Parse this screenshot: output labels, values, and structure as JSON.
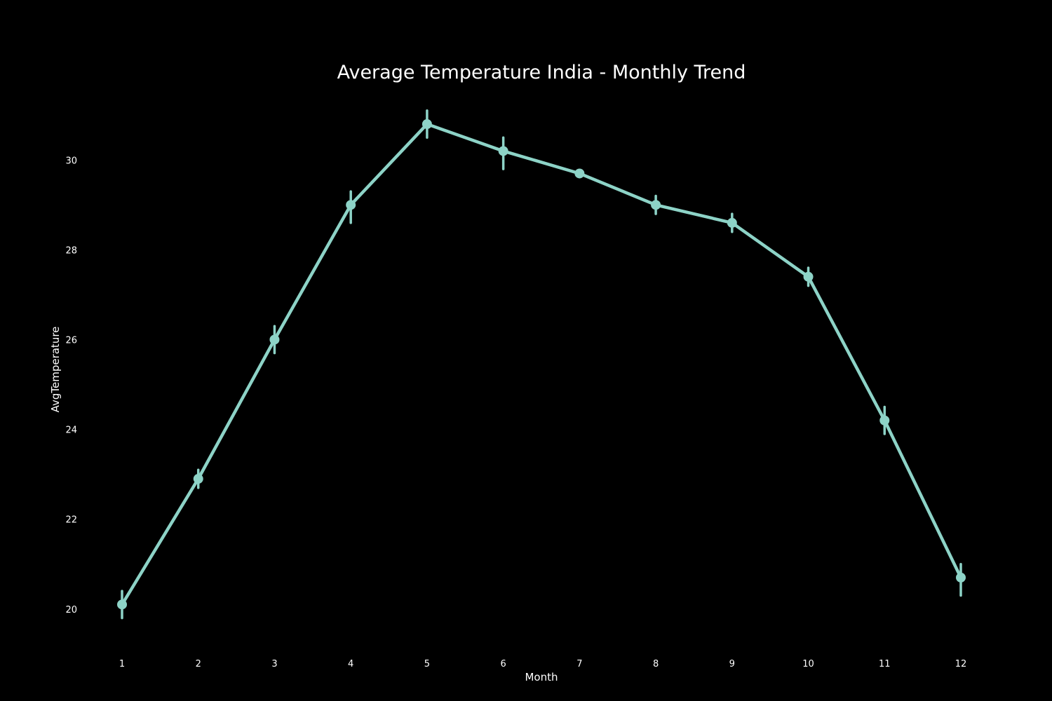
{
  "chart_data": {
    "type": "line",
    "title": "Average Temperature India - Monthly Trend",
    "xlabel": "Month",
    "ylabel": "AvgTemperature",
    "x": [
      1,
      2,
      3,
      4,
      5,
      6,
      7,
      8,
      9,
      10,
      11,
      12
    ],
    "x_tick_labels": [
      "1",
      "2",
      "3",
      "4",
      "5",
      "6",
      "7",
      "8",
      "9",
      "10",
      "11",
      "12"
    ],
    "y_ticks": [
      20,
      22,
      24,
      26,
      28,
      30
    ],
    "y_tick_labels": [
      "20",
      "22",
      "24",
      "26",
      "28",
      "30"
    ],
    "ylim": [
      19.2,
      31.3
    ],
    "series": [
      {
        "values": [
          20.1,
          22.9,
          26.0,
          29.0,
          30.8,
          30.2,
          29.7,
          29.0,
          28.6,
          27.4,
          24.2,
          20.7
        ],
        "error_low": [
          19.8,
          22.7,
          25.7,
          28.6,
          30.5,
          29.8,
          29.65,
          28.8,
          28.4,
          27.2,
          23.9,
          20.3
        ],
        "error_high": [
          20.4,
          23.1,
          26.3,
          29.3,
          31.1,
          30.5,
          29.75,
          29.2,
          28.8,
          27.6,
          24.5,
          21.0
        ]
      }
    ],
    "grid": false,
    "legend": "none",
    "background_color": "#000000",
    "line_color": "#8dd3c7"
  }
}
